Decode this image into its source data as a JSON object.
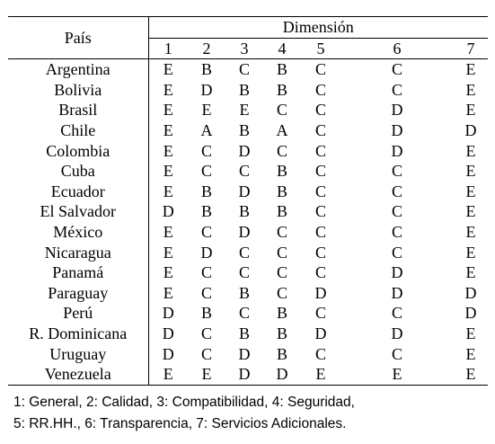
{
  "table": {
    "header_country": "País",
    "header_dimension": "Dimensión",
    "dimension_numbers": [
      "1",
      "2",
      "3",
      "4",
      "5",
      "6",
      "7"
    ],
    "rows": [
      {
        "country": "Argentina",
        "values": [
          "E",
          "B",
          "C",
          "B",
          "C",
          "C",
          "E"
        ]
      },
      {
        "country": "Bolivia",
        "values": [
          "E",
          "D",
          "B",
          "B",
          "C",
          "C",
          "E"
        ]
      },
      {
        "country": "Brasil",
        "values": [
          "E",
          "E",
          "E",
          "C",
          "C",
          "D",
          "E"
        ]
      },
      {
        "country": "Chile",
        "values": [
          "E",
          "A",
          "B",
          "A",
          "C",
          "D",
          "D"
        ]
      },
      {
        "country": "Colombia",
        "values": [
          "E",
          "C",
          "D",
          "C",
          "C",
          "D",
          "E"
        ]
      },
      {
        "country": "Cuba",
        "values": [
          "E",
          "C",
          "C",
          "B",
          "C",
          "C",
          "E"
        ]
      },
      {
        "country": "Ecuador",
        "values": [
          "E",
          "B",
          "D",
          "B",
          "C",
          "C",
          "E"
        ]
      },
      {
        "country": "El Salvador",
        "values": [
          "D",
          "B",
          "B",
          "B",
          "C",
          "C",
          "E"
        ]
      },
      {
        "country": "México",
        "values": [
          "E",
          "C",
          "D",
          "C",
          "C",
          "C",
          "E"
        ]
      },
      {
        "country": "Nicaragua",
        "values": [
          "E",
          "D",
          "C",
          "C",
          "C",
          "C",
          "E"
        ]
      },
      {
        "country": "Panamá",
        "values": [
          "E",
          "C",
          "C",
          "C",
          "C",
          "D",
          "E"
        ]
      },
      {
        "country": "Paraguay",
        "values": [
          "E",
          "C",
          "B",
          "C",
          "D",
          "D",
          "D"
        ]
      },
      {
        "country": "Perú",
        "values": [
          "D",
          "B",
          "C",
          "B",
          "C",
          "C",
          "D"
        ]
      },
      {
        "country": "R. Dominicana",
        "values": [
          "D",
          "C",
          "B",
          "B",
          "D",
          "D",
          "E"
        ]
      },
      {
        "country": "Uruguay",
        "values": [
          "D",
          "C",
          "D",
          "B",
          "C",
          "C",
          "E"
        ]
      },
      {
        "country": "Venezuela",
        "values": [
          "E",
          "E",
          "D",
          "D",
          "E",
          "E",
          "E"
        ]
      }
    ]
  },
  "legend": {
    "line1": "1: General, 2: Calidad, 3: Compatibilidad, 4: Seguridad,",
    "line2": "5: RR.HH., 6: Transparencia, 7: Servicios Adicionales."
  }
}
